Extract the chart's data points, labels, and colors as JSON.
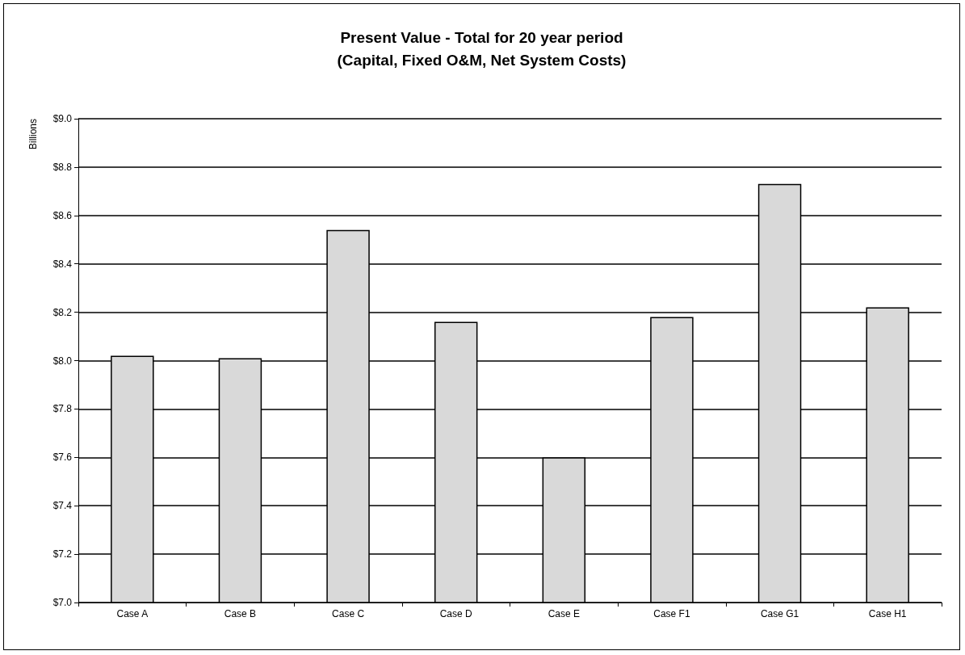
{
  "chart_data": {
    "type": "bar",
    "title": "Present Value - Total for 20 year period\n(Capital, Fixed O&M, Net System Costs)",
    "ylabel": "Billions",
    "categories": [
      "Case A",
      "Case B",
      "Case C",
      "Case D",
      "Case E",
      "Case F1",
      "Case G1",
      "Case H1"
    ],
    "values": [
      8.02,
      8.01,
      8.54,
      8.16,
      7.6,
      8.18,
      8.73,
      8.22
    ],
    "color": "#d9d9d9",
    "ylim": [
      7.0,
      9.0
    ],
    "yticks": [
      {
        "value": 7.0,
        "label": "$7.0"
      },
      {
        "value": 7.2,
        "label": "$7.2"
      },
      {
        "value": 7.4,
        "label": "$7.4"
      },
      {
        "value": 7.6,
        "label": "$7.6"
      },
      {
        "value": 7.8,
        "label": "$7.8"
      },
      {
        "value": 8.0,
        "label": "$8.0"
      },
      {
        "value": 8.2,
        "label": "$8.2"
      },
      {
        "value": 8.4,
        "label": "$8.4"
      },
      {
        "value": 8.6,
        "label": "$8.6"
      },
      {
        "value": 8.8,
        "label": "$8.8"
      },
      {
        "value": 9.0,
        "label": "$9.0"
      }
    ],
    "grid": "y"
  }
}
